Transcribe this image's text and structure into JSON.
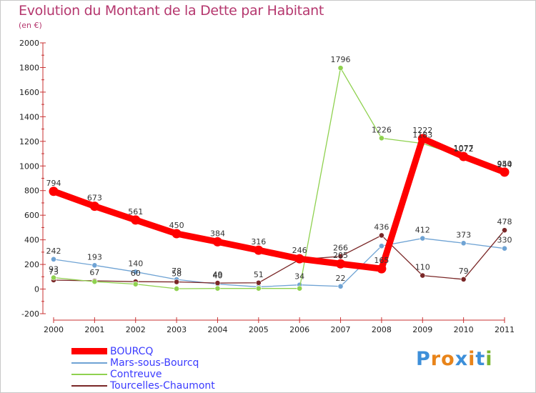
{
  "title": "Evolution du Montant de la Dette par Habitant",
  "subtitle": "(en €)",
  "logo": {
    "text": "Proxiti",
    "letters": [
      {
        "ch": "P",
        "color": "#3d8fd9"
      },
      {
        "ch": "r",
        "color": "#e8841a"
      },
      {
        "ch": "o",
        "color": "#e8841a"
      },
      {
        "ch": "x",
        "color": "#3d8fd9"
      },
      {
        "ch": "i",
        "color": "#e8841a"
      },
      {
        "ch": "t",
        "color": "#3d8fd9"
      },
      {
        "ch": "i",
        "color": "#7ab52f"
      }
    ]
  },
  "chart_data": {
    "type": "line",
    "title": "Evolution du Montant de la Dette par Habitant",
    "subtitle": "(en €)",
    "x": [
      "2000",
      "2001",
      "2002",
      "2003",
      "2004",
      "2005",
      "2006",
      "2007",
      "2008",
      "2009",
      "2010",
      "2011"
    ],
    "ylim": [
      -200,
      2000
    ],
    "yticks": [
      -200,
      0,
      200,
      400,
      600,
      800,
      1000,
      1200,
      1400,
      1600,
      1800,
      2000
    ],
    "grid": false,
    "legend": "bottom",
    "series": [
      {
        "name": "BOURCQ",
        "color": "#ff0000",
        "label_color": "#3b3bff",
        "values": [
          794,
          673,
          561,
          450,
          384,
          316,
          246,
          205,
          165,
          1222,
          1077,
          950
        ],
        "labels": [
          "794",
          "673",
          "561",
          "450",
          "384",
          "316",
          "246",
          "205",
          "165",
          "1222",
          "1077",
          "950"
        ]
      },
      {
        "name": "Mars-sous-Bourcq",
        "color": "#6fa3d4",
        "label_color": "#3b3bff",
        "values": [
          242,
          193,
          140,
          78,
          40,
          18,
          34,
          22,
          350,
          412,
          373,
          330
        ],
        "labels": [
          "242",
          "193",
          "140",
          "78",
          "40",
          "",
          "34",
          "22",
          "",
          "412",
          "373",
          "330"
        ]
      },
      {
        "name": "Contreuve",
        "color": "#8fd14f",
        "label_color": "#3b3bff",
        "values": [
          93,
          60,
          40,
          3,
          5,
          5,
          5,
          1796,
          1226,
          1183,
          1072,
          944
        ],
        "labels": [
          "93",
          "",
          "",
          "",
          "",
          "",
          "",
          "1796",
          "1226",
          "1183",
          "1072",
          "944"
        ]
      },
      {
        "name": "Tourcelles-Chaumont",
        "color": "#7a2727",
        "label_color": "#3b3bff",
        "values": [
          73,
          67,
          60,
          58,
          49,
          51,
          240,
          266,
          436,
          110,
          79,
          478
        ],
        "labels": [
          "73",
          "67",
          "60",
          "58",
          "49",
          "51",
          "",
          "266",
          "436",
          "110",
          "79",
          "478"
        ]
      }
    ]
  }
}
